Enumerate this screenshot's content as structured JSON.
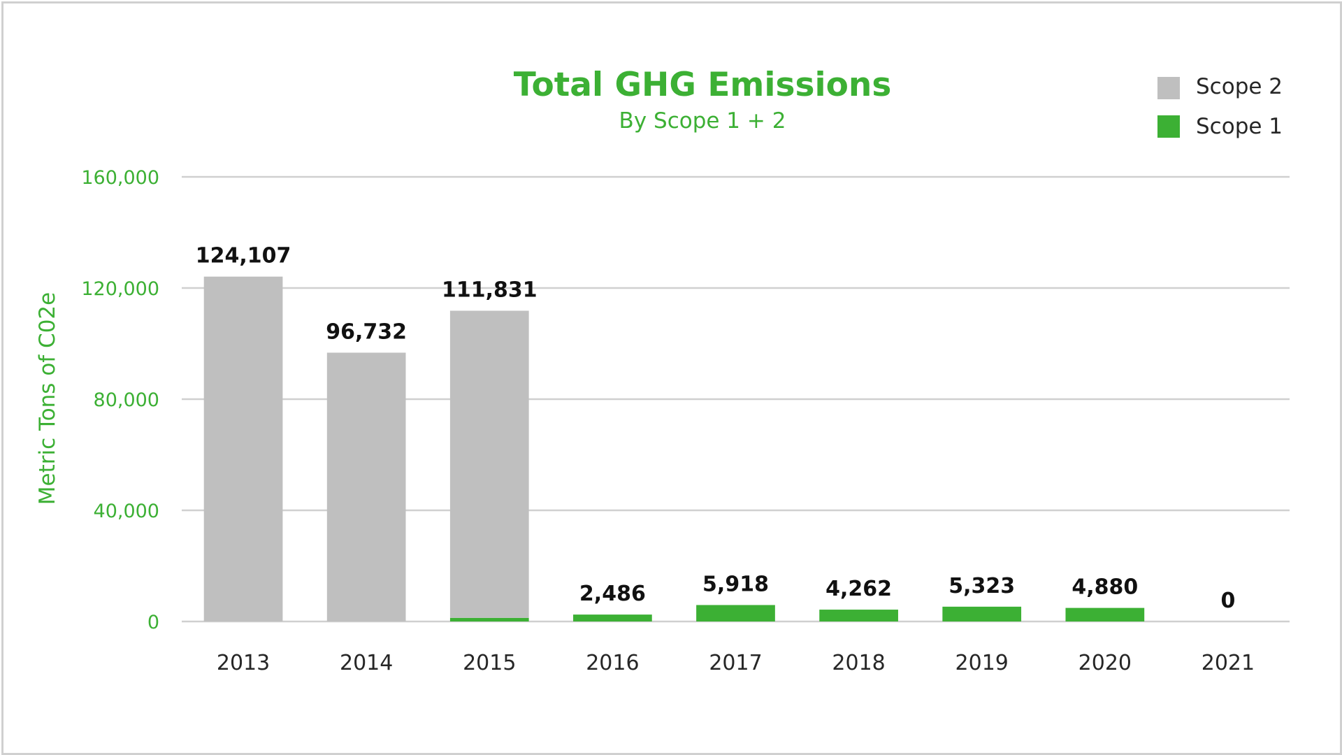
{
  "chart_data": {
    "type": "bar",
    "stacked": true,
    "title": "Total GHG Emissions",
    "subtitle": "By Scope 1 + 2",
    "xlabel": "",
    "ylabel": "Metric Tons of C02e",
    "ylim": [
      0,
      160000
    ],
    "yticks": [
      0,
      40000,
      80000,
      120000,
      160000
    ],
    "ytick_labels": [
      "0",
      "40,000",
      "80,000",
      "120,000",
      "160,000"
    ],
    "grid": true,
    "legend_position": "top-right",
    "categories": [
      "2013",
      "2014",
      "2015",
      "2016",
      "2017",
      "2018",
      "2019",
      "2020",
      "2021"
    ],
    "series": [
      {
        "name": "Scope 1",
        "color": "#3cb034",
        "values": [
          0,
          0,
          1300,
          2486,
          5918,
          4262,
          5323,
          4880,
          0
        ]
      },
      {
        "name": "Scope 2",
        "color": "#bfbfbf",
        "values": [
          124107,
          96732,
          110531,
          0,
          0,
          0,
          0,
          0,
          0
        ]
      }
    ],
    "totals_labels": [
      "124,107",
      "96,732",
      "111,831",
      "2,486",
      "5,918",
      "4,262",
      "5,323",
      "4,880",
      "0"
    ],
    "colors": {
      "title": "#3cb034",
      "axis_text": "#3cb034",
      "grid": "#d0d0d0"
    }
  }
}
